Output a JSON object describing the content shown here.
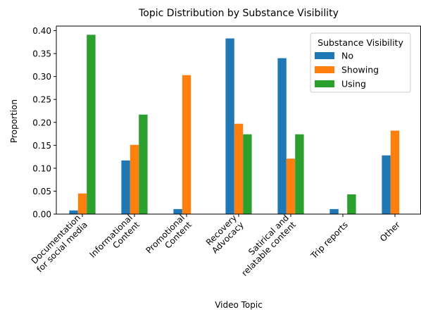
{
  "chart_data": {
    "type": "bar",
    "title": "Topic Distribution by Substance Visibility",
    "xlabel": "Video Topic",
    "ylabel": "Proportion",
    "ylim": [
      0,
      0.41
    ],
    "yticks": [
      "0.00",
      "0.05",
      "0.10",
      "0.15",
      "0.20",
      "0.25",
      "0.30",
      "0.35",
      "0.40"
    ],
    "categories": [
      [
        "Documentation",
        "for social media"
      ],
      [
        "Informational",
        "Content"
      ],
      [
        "Promotional",
        "Content"
      ],
      [
        "Recovery",
        "Advocacy"
      ],
      [
        "Satirical and",
        "relatable content"
      ],
      [
        "Trip reports"
      ],
      [
        "Other"
      ]
    ],
    "legend": {
      "title": "Substance Visibility",
      "placement": "top-right"
    },
    "grid": false,
    "series": [
      {
        "name": "No",
        "color": "#1f77b4",
        "values": [
          0.008,
          0.117,
          0.011,
          0.383,
          0.34,
          0.011,
          0.128
        ]
      },
      {
        "name": "Showing",
        "color": "#ff7f0e",
        "values": [
          0.045,
          0.151,
          0.303,
          0.197,
          0.121,
          0.0,
          0.182
        ]
      },
      {
        "name": "Using",
        "color": "#2ca02c",
        "values": [
          0.391,
          0.217,
          0.0,
          0.174,
          0.174,
          0.043,
          0.0
        ]
      }
    ]
  }
}
